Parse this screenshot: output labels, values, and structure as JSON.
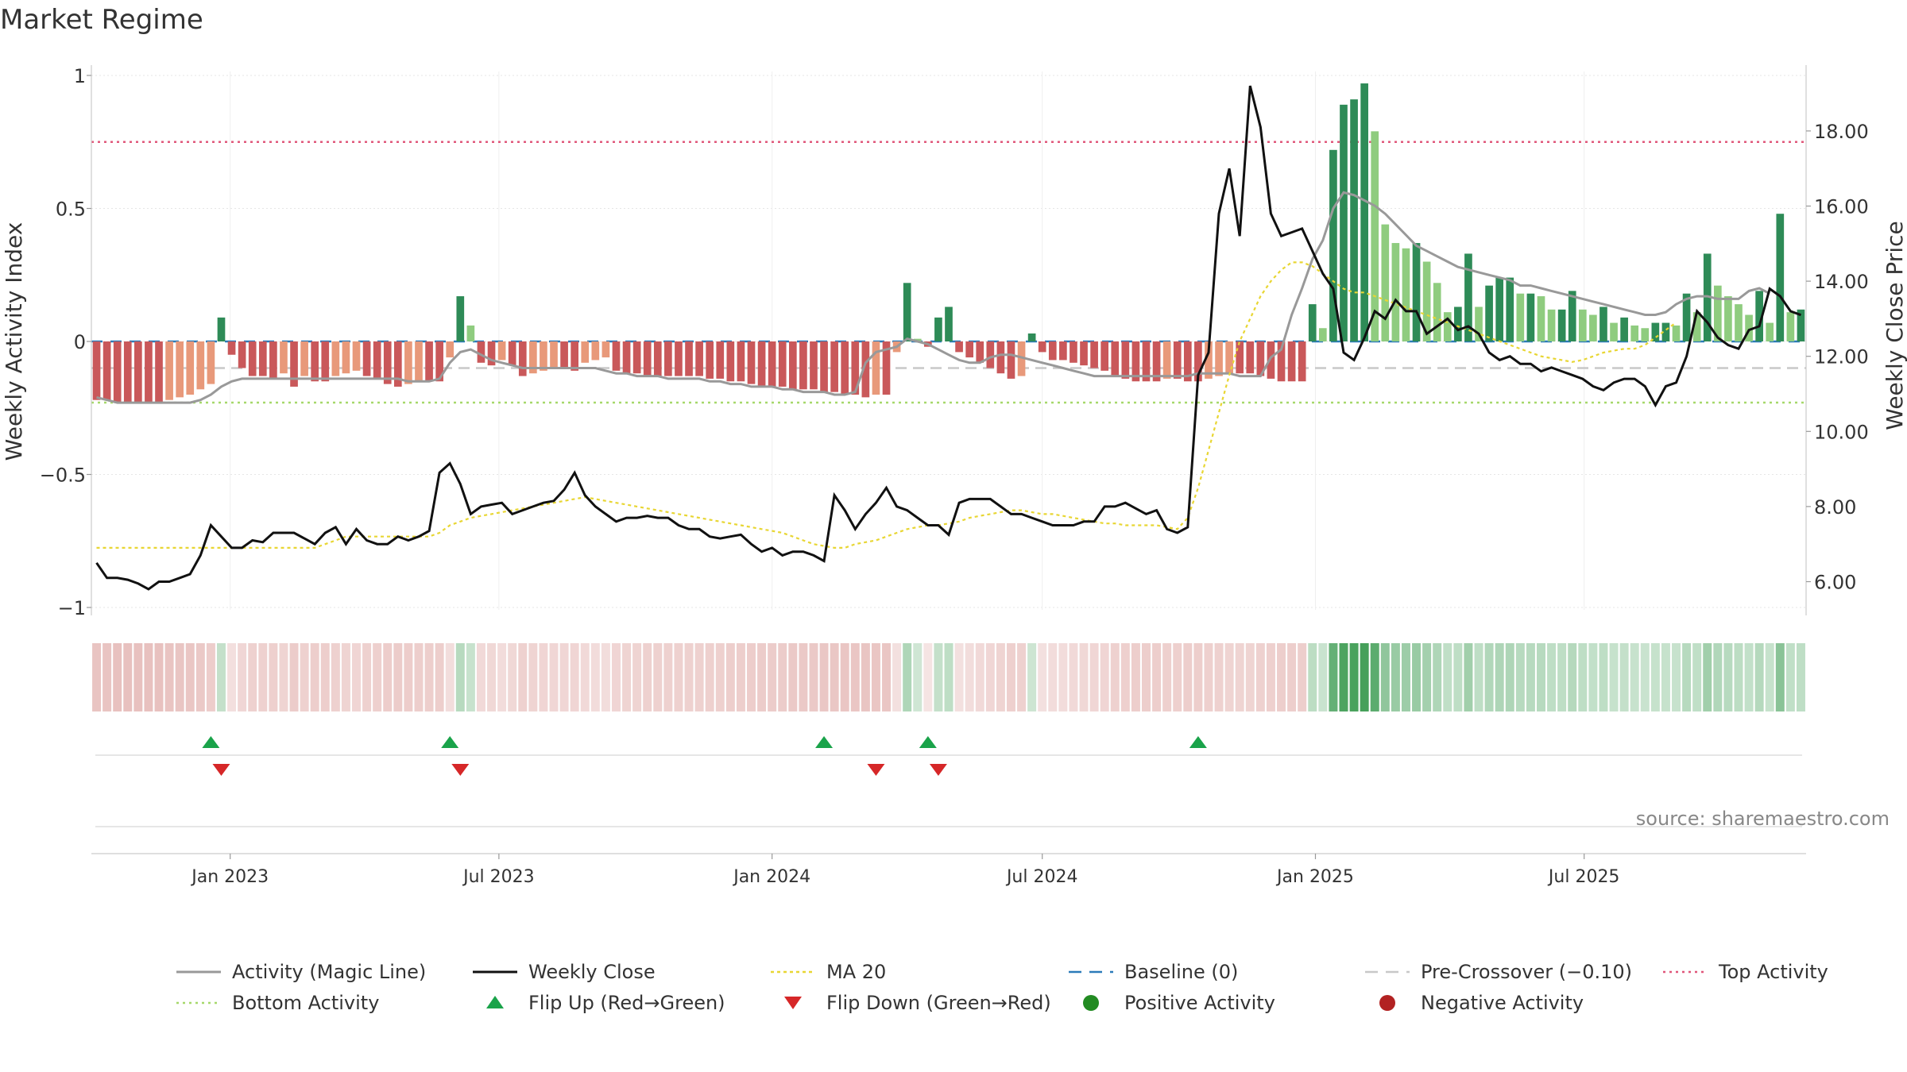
{
  "title": "Market Regime",
  "source": "source: sharemaestro.com",
  "axes": {
    "left_label": "Weekly Activity Index",
    "right_label": "Weekly Close Price",
    "left_ticks": [
      {
        "v": 1,
        "label": "1"
      },
      {
        "v": 0.5,
        "label": "0.5"
      },
      {
        "v": 0,
        "label": "0"
      },
      {
        "v": -0.5,
        "label": "−0.5"
      },
      {
        "v": -1,
        "label": "−1"
      }
    ],
    "right_ticks": [
      {
        "v": 18,
        "label": "18.00"
      },
      {
        "v": 16,
        "label": "16.00"
      },
      {
        "v": 14,
        "label": "14.00"
      },
      {
        "v": 12,
        "label": "12.00"
      },
      {
        "v": 10,
        "label": "10.00"
      },
      {
        "v": 8,
        "label": "8.00"
      },
      {
        "v": 6,
        "label": "6.00"
      }
    ],
    "x_ticks": [
      {
        "date": "2023-01-01",
        "label": "Jan 2023"
      },
      {
        "date": "2023-07-01",
        "label": "Jul 2023"
      },
      {
        "date": "2024-01-01",
        "label": "Jan 2024"
      },
      {
        "date": "2024-07-01",
        "label": "Jul 2024"
      },
      {
        "date": "2025-01-01",
        "label": "Jan 2025"
      },
      {
        "date": "2025-07-01",
        "label": "Jul 2025"
      }
    ]
  },
  "legend": [
    {
      "key": "magic",
      "label": "Activity (Magic Line)"
    },
    {
      "key": "close",
      "label": "Weekly Close"
    },
    {
      "key": "ma20",
      "label": "MA 20"
    },
    {
      "key": "baseline",
      "label": "Baseline (0)"
    },
    {
      "key": "precross",
      "label": "Pre-Crossover (−0.10)"
    },
    {
      "key": "top",
      "label": "Top Activity"
    },
    {
      "key": "bottom",
      "label": "Bottom Activity"
    },
    {
      "key": "flipup",
      "label": "Flip Up (Red→Green)"
    },
    {
      "key": "flipdown",
      "label": "Flip Down (Green→Red)"
    },
    {
      "key": "pos",
      "label": "Positive Activity"
    },
    {
      "key": "neg",
      "label": "Negative Activity"
    }
  ],
  "colors": {
    "pos_dark": "#2e8b57",
    "pos_light": "#8fcc7f",
    "neg_dark": "#c9585a",
    "neg_light": "#e8997a",
    "magic": "#999999",
    "close": "#111111",
    "ma20": "#e8d633",
    "baseline": "#2b7bb9",
    "precross": "#c8c8c8",
    "top": "#e0577a",
    "bottom": "#a6d86a",
    "flip_up": "#1aa34a",
    "flip_down": "#d62728",
    "pos_dot": "#228b22",
    "neg_dot": "#b22222"
  },
  "chart_data": {
    "type": "bar",
    "title": "Market Regime",
    "start_date": "2022-10-03",
    "interval": "weekly",
    "ylim_left": [
      -1.05,
      1.05
    ],
    "ylim_right": [
      5.0,
      19.8
    ],
    "levels": {
      "top": 0.75,
      "bottom": -0.23,
      "pre_crossover": -0.1,
      "baseline": 0
    },
    "series": [
      {
        "name": "Weekly Activity Index",
        "values": [
          -0.22,
          -0.22,
          -0.23,
          -0.23,
          -0.23,
          -0.23,
          -0.23,
          -0.22,
          -0.21,
          -0.2,
          -0.18,
          -0.16,
          0.09,
          -0.05,
          -0.1,
          -0.13,
          -0.13,
          -0.14,
          -0.12,
          -0.17,
          -0.13,
          -0.15,
          -0.15,
          -0.13,
          -0.12,
          -0.11,
          -0.13,
          -0.14,
          -0.16,
          -0.17,
          -0.16,
          -0.15,
          -0.15,
          -0.15,
          -0.06,
          0.17,
          0.06,
          -0.08,
          -0.09,
          -0.07,
          -0.09,
          -0.13,
          -0.12,
          -0.11,
          -0.1,
          -0.1,
          -0.11,
          -0.08,
          -0.07,
          -0.06,
          -0.11,
          -0.12,
          -0.12,
          -0.13,
          -0.13,
          -0.13,
          -0.13,
          -0.13,
          -0.13,
          -0.14,
          -0.14,
          -0.15,
          -0.15,
          -0.16,
          -0.17,
          -0.17,
          -0.17,
          -0.18,
          -0.18,
          -0.18,
          -0.19,
          -0.19,
          -0.2,
          -0.2,
          -0.21,
          -0.2,
          -0.2,
          -0.04,
          0.22,
          0.01,
          -0.02,
          0.09,
          0.13,
          -0.04,
          -0.06,
          -0.08,
          -0.1,
          -0.12,
          -0.14,
          -0.13,
          0.03,
          -0.04,
          -0.07,
          -0.07,
          -0.08,
          -0.09,
          -0.1,
          -0.11,
          -0.13,
          -0.14,
          -0.15,
          -0.15,
          -0.15,
          -0.14,
          -0.14,
          -0.15,
          -0.15,
          -0.14,
          -0.13,
          -0.12,
          -0.12,
          -0.12,
          -0.13,
          -0.14,
          -0.15,
          -0.15,
          -0.15,
          0.14,
          0.05,
          0.72,
          0.89,
          0.91,
          0.97,
          0.79,
          0.44,
          0.37,
          0.35,
          0.37,
          0.3,
          0.22,
          0.11,
          0.13,
          0.33,
          0.13,
          0.21,
          0.24,
          0.24,
          0.18,
          0.18,
          0.17,
          0.12,
          0.12,
          0.19,
          0.12,
          0.1,
          0.13,
          0.07,
          0.09,
          0.06,
          0.05,
          0.07,
          0.07,
          0.06,
          0.18,
          0.11,
          0.33,
          0.21,
          0.17,
          0.14,
          0.1,
          0.19,
          0.07,
          0.48,
          0.11,
          0.12
        ]
      },
      {
        "name": "Weekly Close",
        "values": [
          6.5,
          6.1,
          6.1,
          6.05,
          5.95,
          5.8,
          6.0,
          6.0,
          6.1,
          6.2,
          6.7,
          7.5,
          7.2,
          6.9,
          6.9,
          7.1,
          7.05,
          7.3,
          7.3,
          7.3,
          7.15,
          7.0,
          7.3,
          7.45,
          7.0,
          7.4,
          7.1,
          7.0,
          7.0,
          7.2,
          7.1,
          7.2,
          7.35,
          8.9,
          9.15,
          8.6,
          7.8,
          8.0,
          8.05,
          8.1,
          7.8,
          7.9,
          8.0,
          8.1,
          8.15,
          8.45,
          8.9,
          8.3,
          8.0,
          7.8,
          7.6,
          7.7,
          7.7,
          7.75,
          7.7,
          7.7,
          7.5,
          7.4,
          7.4,
          7.2,
          7.15,
          7.2,
          7.25,
          7.0,
          6.8,
          6.9,
          6.7,
          6.8,
          6.8,
          6.7,
          6.55,
          8.3,
          7.9,
          7.4,
          7.8,
          8.1,
          8.5,
          8.0,
          7.9,
          7.7,
          7.5,
          7.5,
          7.25,
          8.1,
          8.2,
          8.2,
          8.2,
          8.0,
          7.8,
          7.8,
          7.7,
          7.6,
          7.5,
          7.5,
          7.5,
          7.6,
          7.6,
          8.0,
          8.0,
          8.1,
          7.95,
          7.8,
          7.9,
          7.4,
          7.3,
          7.45,
          11.5,
          12.1,
          15.8,
          17.0,
          15.2,
          19.2,
          18.1,
          15.8,
          15.2,
          15.3,
          15.4,
          14.8,
          14.2,
          13.8,
          12.1,
          11.9,
          12.5,
          13.2,
          13.0,
          13.5,
          13.2,
          13.2,
          12.6,
          12.8,
          13.0,
          12.7,
          12.8,
          12.6,
          12.1,
          11.9,
          12.0,
          11.8,
          11.8,
          11.6,
          11.7,
          11.6,
          11.5,
          11.4,
          11.2,
          11.1,
          11.3,
          11.4,
          11.4,
          11.2,
          10.7,
          11.2,
          11.3,
          12.0,
          13.2,
          12.9,
          12.5,
          12.3,
          12.2,
          12.7,
          12.8,
          13.8,
          13.6,
          13.2,
          13.1
        ]
      },
      {
        "name": "Activity (Magic Line)",
        "values": [
          -0.21,
          -0.22,
          -0.23,
          -0.23,
          -0.23,
          -0.23,
          -0.23,
          -0.23,
          -0.23,
          -0.23,
          -0.22,
          -0.2,
          -0.17,
          -0.15,
          -0.14,
          -0.14,
          -0.14,
          -0.14,
          -0.14,
          -0.14,
          -0.14,
          -0.14,
          -0.14,
          -0.14,
          -0.14,
          -0.14,
          -0.14,
          -0.14,
          -0.14,
          -0.14,
          -0.15,
          -0.15,
          -0.15,
          -0.14,
          -0.08,
          -0.04,
          -0.03,
          -0.05,
          -0.07,
          -0.08,
          -0.09,
          -0.1,
          -0.1,
          -0.1,
          -0.1,
          -0.1,
          -0.1,
          -0.1,
          -0.1,
          -0.11,
          -0.12,
          -0.12,
          -0.13,
          -0.13,
          -0.13,
          -0.14,
          -0.14,
          -0.14,
          -0.14,
          -0.15,
          -0.15,
          -0.16,
          -0.16,
          -0.17,
          -0.17,
          -0.17,
          -0.18,
          -0.18,
          -0.19,
          -0.19,
          -0.19,
          -0.2,
          -0.2,
          -0.19,
          -0.08,
          -0.04,
          -0.03,
          -0.02,
          0.01,
          0.0,
          -0.01,
          -0.03,
          -0.05,
          -0.07,
          -0.08,
          -0.08,
          -0.06,
          -0.05,
          -0.05,
          -0.06,
          -0.07,
          -0.08,
          -0.09,
          -0.1,
          -0.11,
          -0.12,
          -0.13,
          -0.13,
          -0.13,
          -0.13,
          -0.13,
          -0.13,
          -0.13,
          -0.13,
          -0.13,
          -0.13,
          -0.12,
          -0.12,
          -0.12,
          -0.12,
          -0.13,
          -0.13,
          -0.13,
          -0.06,
          -0.03,
          0.1,
          0.2,
          0.31,
          0.38,
          0.5,
          0.56,
          0.55,
          0.53,
          0.51,
          0.48,
          0.44,
          0.4,
          0.36,
          0.34,
          0.32,
          0.3,
          0.28,
          0.27,
          0.26,
          0.25,
          0.24,
          0.23,
          0.21,
          0.21,
          0.2,
          0.19,
          0.18,
          0.17,
          0.16,
          0.15,
          0.14,
          0.13,
          0.12,
          0.11,
          0.1,
          0.1,
          0.11,
          0.14,
          0.16,
          0.17,
          0.17,
          0.16,
          0.16,
          0.16,
          0.19,
          0.2,
          0.18
        ]
      },
      {
        "name": "MA 20",
        "values": [
          6.9,
          6.9,
          6.9,
          6.9,
          6.9,
          6.9,
          6.9,
          6.9,
          6.9,
          6.9,
          6.9,
          6.9,
          6.9,
          6.9,
          6.9,
          6.9,
          6.9,
          6.9,
          6.9,
          6.9,
          6.9,
          6.9,
          7.0,
          7.1,
          7.2,
          7.2,
          7.2,
          7.2,
          7.2,
          7.2,
          7.2,
          7.2,
          7.2,
          7.3,
          7.5,
          7.6,
          7.7,
          7.75,
          7.8,
          7.85,
          7.9,
          7.95,
          8.0,
          8.05,
          8.1,
          8.15,
          8.2,
          8.25,
          8.2,
          8.15,
          8.1,
          8.05,
          8.0,
          7.95,
          7.9,
          7.85,
          7.8,
          7.75,
          7.7,
          7.65,
          7.6,
          7.55,
          7.5,
          7.45,
          7.4,
          7.35,
          7.3,
          7.2,
          7.1,
          7.0,
          6.95,
          6.9,
          6.9,
          7.0,
          7.05,
          7.1,
          7.2,
          7.3,
          7.4,
          7.45,
          7.5,
          7.5,
          7.55,
          7.6,
          7.7,
          7.75,
          7.8,
          7.85,
          7.9,
          7.9,
          7.85,
          7.8,
          7.8,
          7.75,
          7.7,
          7.65,
          7.6,
          7.55,
          7.55,
          7.5,
          7.5,
          7.5,
          7.5,
          7.45,
          7.4,
          7.7,
          8.5,
          9.5,
          10.5,
          11.5,
          12.4,
          13.0,
          13.6,
          14.0,
          14.3,
          14.5,
          14.5,
          14.4,
          14.2,
          14.0,
          13.8,
          13.7,
          13.7,
          13.6,
          13.5,
          13.4,
          13.3,
          13.2,
          13.1,
          13.0,
          12.9,
          12.8,
          12.7,
          12.6,
          12.5,
          12.4,
          12.3,
          12.2,
          12.1,
          12.0,
          11.95,
          11.9,
          11.85,
          11.9,
          12.0,
          12.1,
          12.15,
          12.2,
          12.2,
          12.3,
          12.5,
          12.7,
          12.9
        ]
      }
    ],
    "flip_up": [
      "2022-12-19",
      "2023-05-29",
      "2024-02-05",
      "2024-04-15",
      "2024-10-14"
    ],
    "flip_down": [
      "2022-12-26",
      "2023-06-05",
      "2024-03-11",
      "2024-04-22"
    ]
  }
}
